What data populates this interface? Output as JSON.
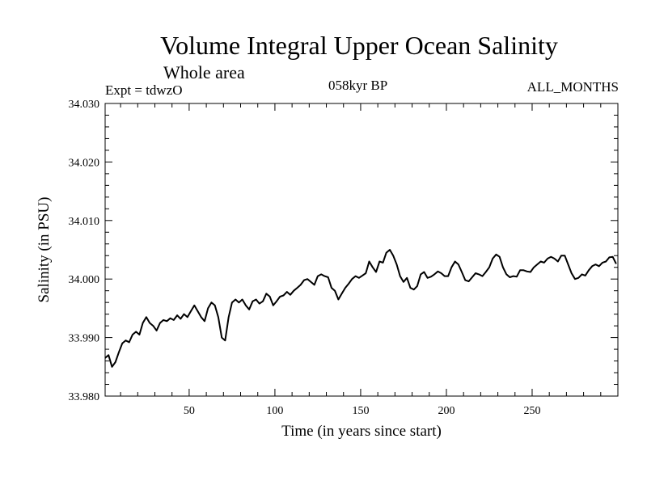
{
  "header": {
    "title": "Volume Integral Upper Ocean Salinity",
    "subtitle": "Whole area",
    "expt": "Expt = tdwzO",
    "period": "058kyr BP",
    "months": "ALL_MONTHS"
  },
  "chart_data": {
    "type": "line",
    "title": "Volume Integral Upper Ocean Salinity",
    "xlabel": "Time (in years since start)",
    "ylabel": "Salinity (in PSU)",
    "xlim": [
      1,
      300
    ],
    "ylim": [
      33.98,
      34.03
    ],
    "x_ticks": [
      50,
      100,
      150,
      200,
      250
    ],
    "x_tick_labels": [
      "50",
      "100",
      "150",
      "200",
      "250"
    ],
    "y_ticks": [
      33.98,
      33.99,
      34.0,
      34.01,
      34.02,
      34.03
    ],
    "y_tick_labels": [
      "33.980",
      "33.990",
      "34.000",
      "34.010",
      "34.020",
      "34.030"
    ],
    "grid": false,
    "series": [
      {
        "x": [
          1,
          3,
          5,
          7,
          9,
          11,
          13,
          15,
          17,
          19,
          21,
          23,
          25,
          27,
          29,
          31,
          33,
          35,
          37,
          39,
          41,
          43,
          45,
          47,
          49,
          51,
          53,
          55,
          57,
          59,
          61,
          63,
          65,
          67,
          69,
          71,
          73,
          75,
          77,
          79,
          81,
          83,
          85,
          87,
          89,
          91,
          93,
          95,
          97,
          99,
          101,
          103,
          105,
          107,
          109,
          111,
          113,
          115,
          117,
          119,
          121,
          123,
          125,
          127,
          129,
          131,
          133,
          135,
          137,
          139,
          141,
          143,
          145,
          147,
          149,
          151,
          153,
          155,
          157,
          159,
          161,
          163,
          165,
          167,
          169,
          171,
          173,
          175,
          177,
          179,
          181,
          183,
          185,
          187,
          189,
          191,
          193,
          195,
          197,
          199,
          201,
          203,
          205,
          207,
          209,
          211,
          213,
          215,
          217,
          219,
          221,
          223,
          225,
          227,
          229,
          231,
          233,
          235,
          237,
          239,
          241,
          243,
          245,
          247,
          249,
          251,
          253,
          255,
          257,
          259,
          261,
          263,
          265,
          267,
          269,
          271,
          273,
          275,
          277,
          279,
          281,
          283,
          285,
          287,
          289,
          291,
          293,
          295,
          297,
          299
        ],
        "values": [
          33.9865,
          33.987,
          33.985,
          33.9858,
          33.9875,
          33.989,
          33.9895,
          33.9892,
          33.9905,
          33.991,
          33.9905,
          33.9925,
          33.9935,
          33.9925,
          33.992,
          33.9912,
          33.9925,
          33.993,
          33.9928,
          33.9933,
          33.993,
          33.9938,
          33.9932,
          33.994,
          33.9935,
          33.9945,
          33.9955,
          33.9945,
          33.9935,
          33.9928,
          33.995,
          33.996,
          33.9955,
          33.9935,
          33.99,
          33.9895,
          33.9935,
          33.996,
          33.9965,
          33.996,
          33.9965,
          33.9955,
          33.9948,
          33.9962,
          33.9965,
          33.9958,
          33.9962,
          33.9975,
          33.997,
          33.9955,
          33.9962,
          33.997,
          33.9972,
          33.9978,
          33.9973,
          33.998,
          33.9985,
          33.999,
          33.9998,
          34.0,
          33.9995,
          33.999,
          34.0005,
          34.0008,
          34.0005,
          34.0003,
          33.9985,
          33.998,
          33.9965,
          33.9975,
          33.9985,
          33.9992,
          34.0,
          34.0005,
          34.0002,
          34.0006,
          34.001,
          34.003,
          34.002,
          34.0012,
          34.003,
          34.0028,
          34.0045,
          34.005,
          34.004,
          34.0025,
          34.0005,
          33.9995,
          34.0002,
          33.9985,
          33.9982,
          33.9988,
          34.0008,
          34.0012,
          34.0002,
          34.0004,
          34.0008,
          34.0013,
          34.001,
          34.0005,
          34.0005,
          34.002,
          34.003,
          34.0025,
          34.0012,
          33.9998,
          33.9996,
          34.0003,
          34.001,
          34.0008,
          34.0005,
          34.0012,
          34.002,
          34.0035,
          34.0042,
          34.0038,
          34.002,
          34.0008,
          34.0003,
          34.0005,
          34.0004,
          34.0015,
          34.0015,
          34.0013,
          34.0012,
          34.002,
          34.0025,
          34.003,
          34.0028,
          34.0035,
          34.0038,
          34.0035,
          34.003,
          34.004,
          34.004,
          34.0025,
          34.001,
          34.0,
          34.0002,
          34.0008,
          34.0006,
          34.0015,
          34.0022,
          34.0025,
          34.0022,
          34.0028,
          34.003,
          34.0037,
          34.0038,
          34.0026
        ]
      }
    ]
  }
}
